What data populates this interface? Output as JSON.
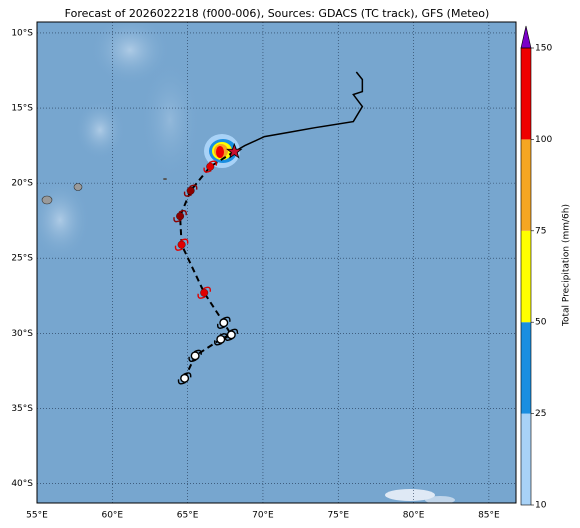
{
  "chart_data": {
    "type": "map",
    "title": "Forecast of 2026022218 (f000-006), Sources: GDACS (TC track), GFS (Meteo)",
    "xlim": [
      55,
      86.8
    ],
    "ylim": [
      -41.3,
      -9.27
    ],
    "xticks": [
      {
        "value": 55,
        "label": "55°E"
      },
      {
        "value": 60,
        "label": "60°E"
      },
      {
        "value": 65,
        "label": "65°E"
      },
      {
        "value": 70,
        "label": "70°E"
      },
      {
        "value": 75,
        "label": "75°E"
      },
      {
        "value": 80,
        "label": "80°E"
      },
      {
        "value": 85,
        "label": "85°E"
      }
    ],
    "yticks": [
      {
        "value": -10,
        "label": "10°S"
      },
      {
        "value": -15,
        "label": "15°S"
      },
      {
        "value": -20,
        "label": "20°S"
      },
      {
        "value": -25,
        "label": "25°S"
      },
      {
        "value": -30,
        "label": "30°S"
      },
      {
        "value": -35,
        "label": "35°S"
      },
      {
        "value": -40,
        "label": "40°S"
      }
    ],
    "grid": true,
    "colorbar": {
      "label": "Total Precipitation (mm/6h)",
      "ticks": [
        10,
        25,
        50,
        75,
        100,
        150
      ],
      "colors": [
        "#a8d2f7",
        "#1a8ee0",
        "#ffff00",
        "#f5a623",
        "#ee0000"
      ],
      "extend_color": "#7a00c8"
    },
    "past_track": {
      "lon": [
        76.2,
        76.6,
        76.6,
        76.0,
        76.6,
        76.0,
        73.5,
        71.8,
        70.1,
        68.8,
        68.1
      ],
      "lat": [
        -12.6,
        -13.1,
        -13.9,
        -14.1,
        -14.9,
        -15.9,
        -16.3,
        -16.6,
        -16.9,
        -17.5,
        -17.9
      ]
    },
    "forecast_track": {
      "lon": [
        68.1,
        66.5,
        65.2,
        64.5,
        64.6,
        66.1,
        67.4,
        67.9,
        67.2,
        65.5,
        64.8
      ],
      "lat": [
        -17.9,
        -18.9,
        -20.5,
        -22.2,
        -24.1,
        -27.3,
        -29.3,
        -30.1,
        -30.4,
        -31.5,
        -33.0
      ],
      "colors": [
        "#c8102e",
        "#e00000",
        "#8b0000",
        "#8b0000",
        "#e00000",
        "#e00000",
        "#ffffff",
        "#ffffff",
        "#ffffff",
        "#ffffff",
        "#ffffff"
      ]
    }
  }
}
